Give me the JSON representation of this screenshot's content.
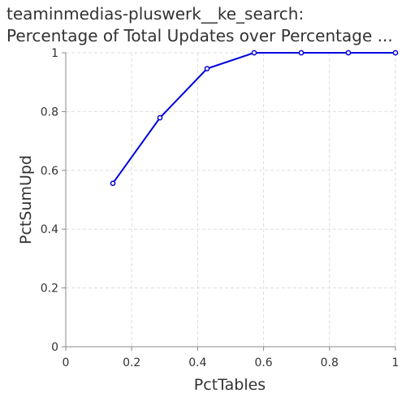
{
  "chart_data": {
    "type": "line",
    "title_lines": [
      "teaminmedias-pluswerk__ke_search:",
      "Percentage of Total Updates over Percentage ..."
    ],
    "xlabel": "PctTables",
    "ylabel": "PctSumUpd",
    "xlim": [
      0,
      1
    ],
    "ylim": [
      0,
      1
    ],
    "x_ticks": [
      "0",
      "0.2",
      "0.4",
      "0.6",
      "0.8",
      "1"
    ],
    "y_ticks": [
      "0",
      "0.2",
      "0.4",
      "0.6",
      "0.8",
      "1"
    ],
    "grid": true,
    "line_color": "#0000dd",
    "series": [
      {
        "x": [
          0.1429,
          0.2857,
          0.4286,
          0.5714,
          0.7143,
          0.8571,
          1.0
        ],
        "y": [
          0.556,
          0.779,
          0.946,
          1.0,
          1.0,
          1.0,
          1.0
        ]
      }
    ]
  }
}
